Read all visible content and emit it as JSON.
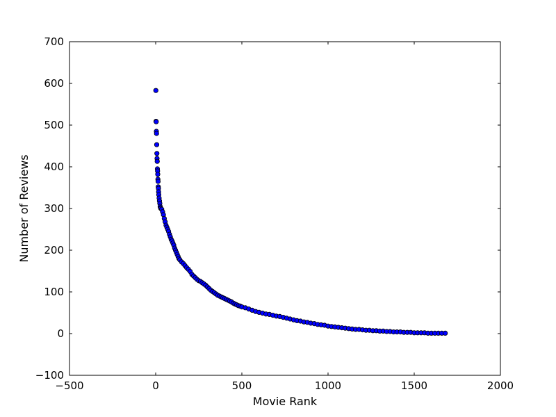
{
  "chart_data": {
    "type": "scatter",
    "xlabel": "Movie Rank",
    "ylabel": "Number of Reviews",
    "xlim": [
      -500,
      2000
    ],
    "ylim": [
      -100,
      700
    ],
    "xticks": [
      -500,
      0,
      500,
      1000,
      1500,
      2000
    ],
    "yticks": [
      -100,
      0,
      100,
      200,
      300,
      400,
      500,
      600,
      700
    ],
    "xtick_labels": [
      "−500",
      "0",
      "500",
      "1000",
      "1500",
      "2000"
    ],
    "ytick_labels": [
      "−100",
      "0",
      "100",
      "200",
      "300",
      "400",
      "500",
      "600",
      "700"
    ],
    "grid": false,
    "marker_color": "#0000ff",
    "marker_edge_color": "#000000",
    "points": [
      [
        1,
        583
      ],
      [
        2,
        509
      ],
      [
        3,
        508
      ],
      [
        4,
        485
      ],
      [
        5,
        480
      ],
      [
        6,
        453
      ],
      [
        7,
        432
      ],
      [
        8,
        420
      ],
      [
        9,
        413
      ],
      [
        10,
        395
      ],
      [
        11,
        390
      ],
      [
        12,
        382
      ],
      [
        13,
        370
      ],
      [
        14,
        365
      ],
      [
        15,
        352
      ],
      [
        16,
        348
      ],
      [
        17,
        340
      ],
      [
        18,
        333
      ],
      [
        20,
        325
      ],
      [
        22,
        318
      ],
      [
        24,
        312
      ],
      [
        26,
        305
      ],
      [
        28,
        302
      ],
      [
        30,
        300
      ],
      [
        35,
        298
      ],
      [
        40,
        292
      ],
      [
        45,
        285
      ],
      [
        50,
        276
      ],
      [
        55,
        268
      ],
      [
        60,
        260
      ],
      [
        65,
        255
      ],
      [
        70,
        250
      ],
      [
        75,
        245
      ],
      [
        80,
        238
      ],
      [
        85,
        232
      ],
      [
        90,
        226
      ],
      [
        95,
        222
      ],
      [
        100,
        217
      ],
      [
        105,
        212
      ],
      [
        110,
        205
      ],
      [
        115,
        200
      ],
      [
        120,
        195
      ],
      [
        125,
        190
      ],
      [
        130,
        185
      ],
      [
        135,
        180
      ],
      [
        140,
        177
      ],
      [
        150,
        172
      ],
      [
        160,
        168
      ],
      [
        170,
        163
      ],
      [
        180,
        158
      ],
      [
        190,
        154
      ],
      [
        200,
        149
      ],
      [
        210,
        142
      ],
      [
        220,
        138
      ],
      [
        230,
        134
      ],
      [
        240,
        130
      ],
      [
        250,
        127
      ],
      [
        260,
        125
      ],
      [
        270,
        122
      ],
      [
        280,
        119
      ],
      [
        290,
        116
      ],
      [
        300,
        112
      ],
      [
        310,
        108
      ],
      [
        320,
        104
      ],
      [
        330,
        101
      ],
      [
        340,
        98
      ],
      [
        350,
        95
      ],
      [
        360,
        92
      ],
      [
        370,
        90
      ],
      [
        380,
        88
      ],
      [
        390,
        86
      ],
      [
        400,
        84
      ],
      [
        410,
        82
      ],
      [
        420,
        80
      ],
      [
        430,
        78
      ],
      [
        440,
        76
      ],
      [
        450,
        73
      ],
      [
        460,
        71
      ],
      [
        470,
        69
      ],
      [
        480,
        67
      ],
      [
        490,
        66
      ],
      [
        500,
        64
      ],
      [
        520,
        62
      ],
      [
        540,
        59
      ],
      [
        560,
        56
      ],
      [
        580,
        53
      ],
      [
        600,
        51
      ],
      [
        620,
        49
      ],
      [
        640,
        47
      ],
      [
        660,
        46
      ],
      [
        680,
        44
      ],
      [
        700,
        42
      ],
      [
        720,
        41
      ],
      [
        740,
        39
      ],
      [
        760,
        37
      ],
      [
        780,
        35
      ],
      [
        800,
        33
      ],
      [
        820,
        31
      ],
      [
        840,
        30
      ],
      [
        860,
        28
      ],
      [
        880,
        27
      ],
      [
        900,
        25
      ],
      [
        920,
        24
      ],
      [
        940,
        22
      ],
      [
        960,
        21
      ],
      [
        980,
        20
      ],
      [
        1000,
        18
      ],
      [
        1020,
        17
      ],
      [
        1040,
        16
      ],
      [
        1060,
        15
      ],
      [
        1080,
        14
      ],
      [
        1100,
        13
      ],
      [
        1120,
        12
      ],
      [
        1140,
        11
      ],
      [
        1160,
        10
      ],
      [
        1180,
        10
      ],
      [
        1200,
        9
      ],
      [
        1220,
        8
      ],
      [
        1240,
        8
      ],
      [
        1260,
        7
      ],
      [
        1280,
        7
      ],
      [
        1300,
        6
      ],
      [
        1320,
        6
      ],
      [
        1340,
        5
      ],
      [
        1360,
        5
      ],
      [
        1380,
        4
      ],
      [
        1400,
        4
      ],
      [
        1420,
        4
      ],
      [
        1440,
        3
      ],
      [
        1460,
        3
      ],
      [
        1480,
        3
      ],
      [
        1500,
        2
      ],
      [
        1520,
        2
      ],
      [
        1540,
        2
      ],
      [
        1560,
        2
      ],
      [
        1580,
        1
      ],
      [
        1600,
        1
      ],
      [
        1620,
        1
      ],
      [
        1640,
        1
      ],
      [
        1660,
        1
      ],
      [
        1680,
        1
      ]
    ]
  }
}
